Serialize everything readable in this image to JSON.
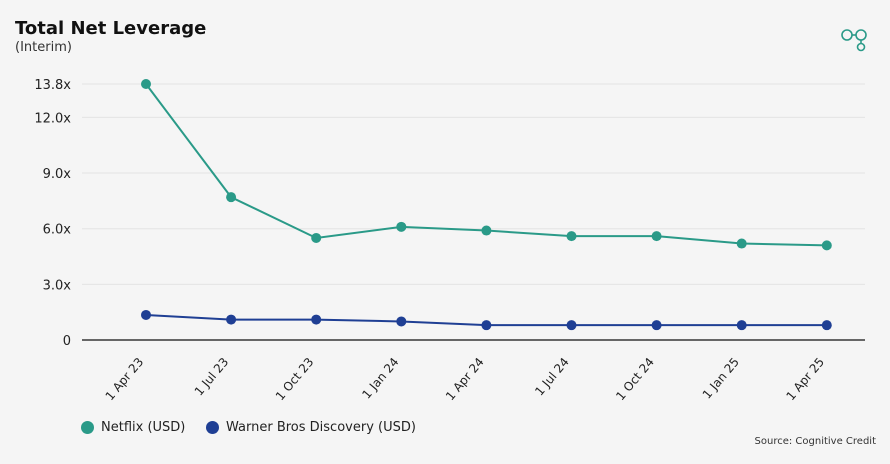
{
  "chart_data": {
    "type": "line",
    "title": "Total Net Leverage",
    "subtitle": "(Interim)",
    "categories": [
      "1 Apr 23",
      "1 Jul 23",
      "1 Oct 23",
      "1 Jan 24",
      "1 Apr 24",
      "1 Jul 24",
      "1 Oct 24",
      "1 Jan 25",
      "1 Apr 25"
    ],
    "yticks": [
      "0",
      "3.0x",
      "6.0x",
      "9.0x",
      "12.0x",
      "13.8x"
    ],
    "ytick_values": [
      0,
      3,
      6,
      9,
      12,
      13.8
    ],
    "ylim": [
      0,
      13.8
    ],
    "grid": true,
    "legend": "bottom-left",
    "series": [
      {
        "name": "Netflix (USD)",
        "color": "#2a9a88",
        "values": [
          13.8,
          7.7,
          5.5,
          6.1,
          5.9,
          5.6,
          5.6,
          5.2,
          5.1
        ]
      },
      {
        "name": "Warner Bros Discovery (USD)",
        "color": "#1f3f94",
        "values": [
          1.35,
          1.1,
          1.1,
          1.0,
          0.8,
          0.8,
          0.8,
          0.8,
          0.8
        ]
      }
    ]
  },
  "source": "Source: Cognitive Credit",
  "icons": {
    "logo": "linked-circles-logo-icon"
  }
}
